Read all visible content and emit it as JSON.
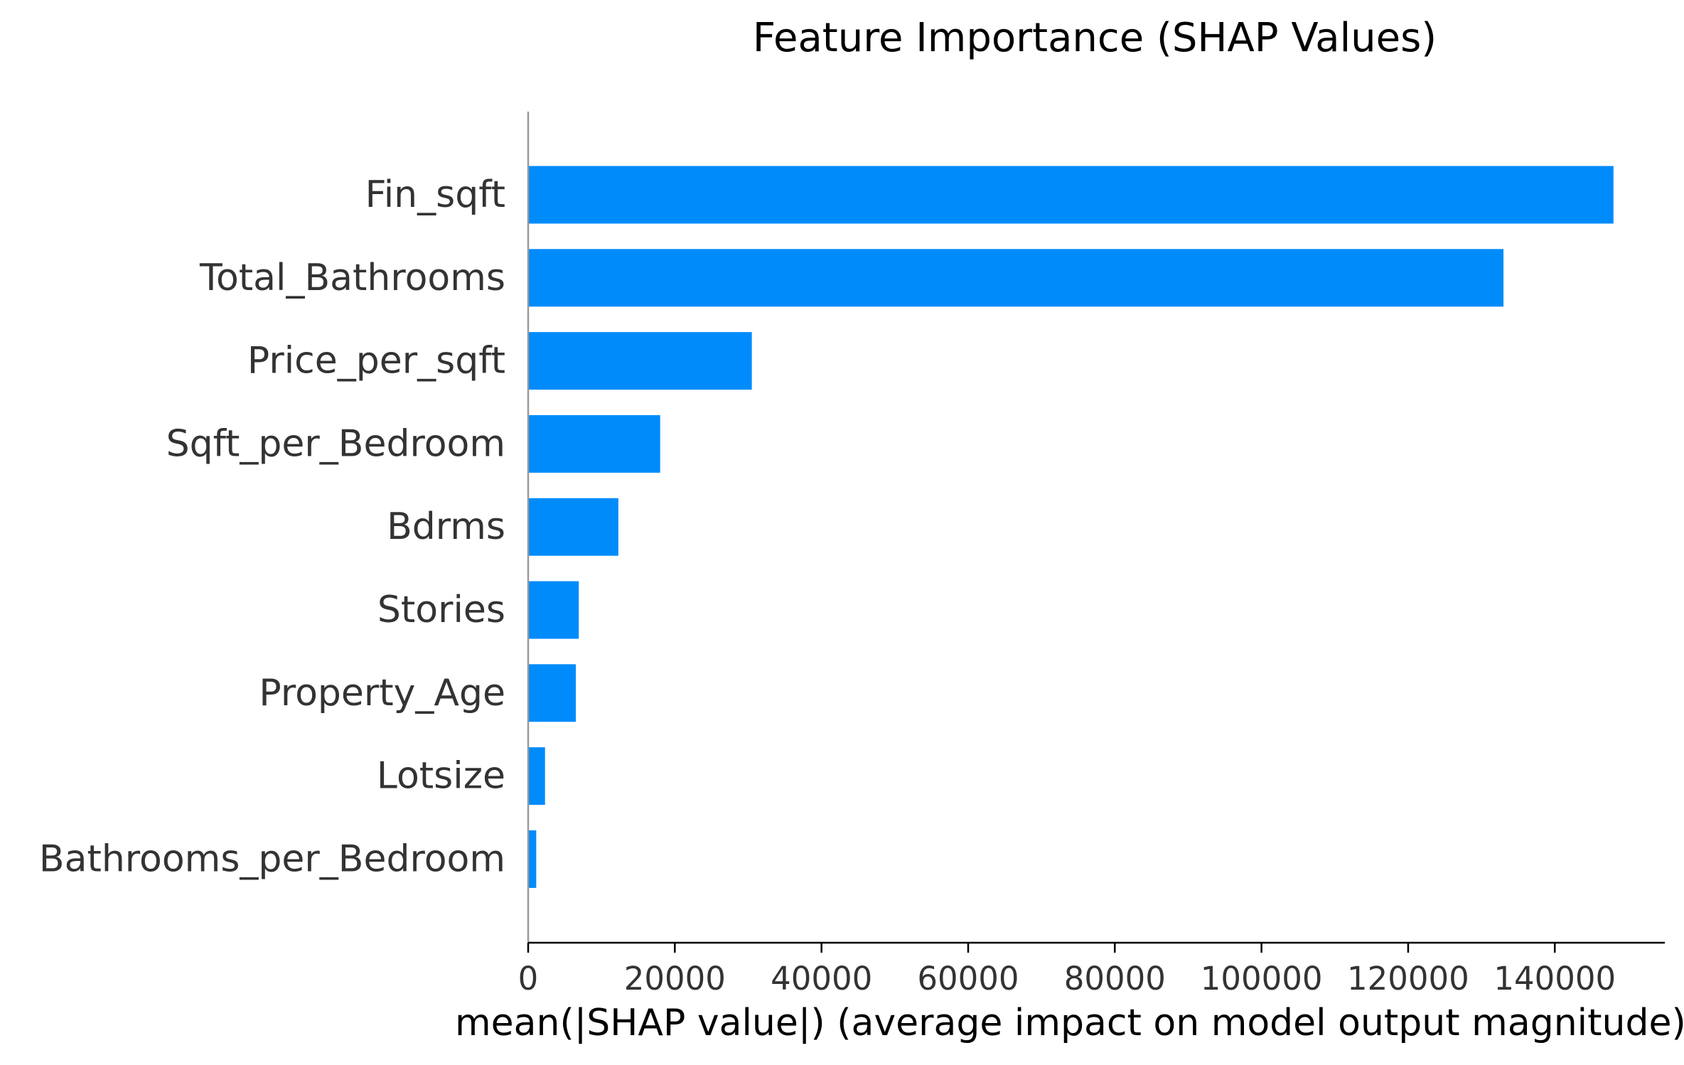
{
  "chart_data": {
    "type": "bar",
    "orientation": "horizontal",
    "title": "Feature Importance (SHAP Values)",
    "xlabel": "mean(|SHAP value|) (average impact on model output magnitude)",
    "ylabel": "",
    "categories": [
      "Fin_sqft",
      "Total_Bathrooms",
      "Price_per_sqft",
      "Sqft_per_Bedroom",
      "Bdrms",
      "Stories",
      "Property_Age",
      "Lotsize",
      "Bathrooms_per_Bedroom"
    ],
    "values": [
      148000,
      133000,
      30500,
      18000,
      12300,
      6900,
      6500,
      2300,
      1100
    ],
    "xlim": [
      0,
      155000
    ],
    "xticks": [
      0,
      20000,
      40000,
      60000,
      80000,
      100000,
      120000,
      140000
    ],
    "xtick_labels": [
      "0",
      "20000",
      "40000",
      "60000",
      "80000",
      "100000",
      "120000",
      "140000"
    ],
    "bar_color": "#008bfb",
    "grid": false,
    "legend": "none"
  }
}
